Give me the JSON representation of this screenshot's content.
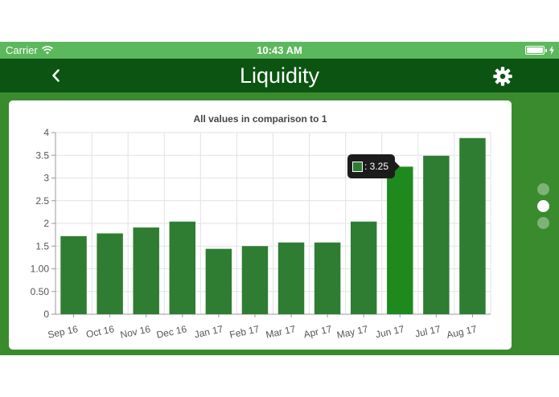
{
  "status_bar": {
    "carrier": "Carrier",
    "time": "10:43 AM",
    "wifi_icon": "wifi-icon",
    "battery_icon": "battery-charging-icon"
  },
  "nav": {
    "title": "Liquidity",
    "back_icon": "chevron-left-icon",
    "settings_icon": "gear-icon"
  },
  "page_indicator": {
    "count": 3,
    "active": 1
  },
  "colors": {
    "status_bar": "#5cb85c",
    "nav_bar": "#0b5411",
    "background": "#3a8a2e",
    "bar": "#2e7d32",
    "bar_highlight": "#1e8a1e"
  },
  "tooltip": {
    "label": ": 3.25",
    "category": "Jun 17"
  },
  "chart_data": {
    "type": "bar",
    "title": "All values in comparison to 1",
    "categories": [
      "Sep 16",
      "Oct 16",
      "Nov 16",
      "Dec 16",
      "Jan 17",
      "Feb 17",
      "Mar 17",
      "Apr 17",
      "May 17",
      "Jun 17",
      "Jul 17",
      "Aug 17"
    ],
    "values": [
      1.72,
      1.78,
      1.91,
      2.04,
      1.44,
      1.5,
      1.58,
      1.58,
      2.04,
      3.25,
      3.49,
      3.88
    ],
    "ylim": [
      0,
      4
    ],
    "yticks": [
      0,
      0.5,
      1,
      1.5,
      2,
      2.5,
      3,
      3.5,
      4
    ],
    "ytick_labels": [
      "0",
      "0.50",
      "1.00",
      "1.5",
      "2",
      "2.5",
      "3",
      "3.5",
      "4"
    ],
    "highlighted_index": 9,
    "grid": true,
    "xlabel": "",
    "ylabel": ""
  }
}
